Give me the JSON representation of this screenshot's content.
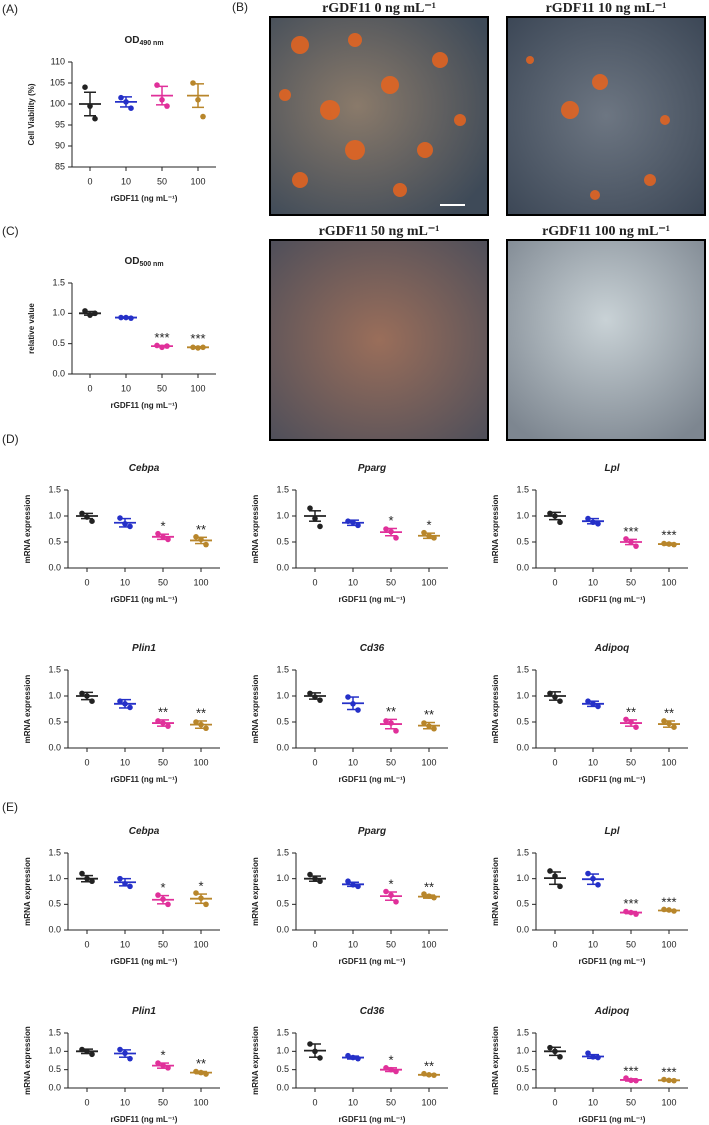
{
  "panel_labels": [
    "(A)",
    "(B)",
    "(C)",
    "(D)",
    "(E)"
  ],
  "images": [
    {
      "title": "rGDF11  0 ng mL⁻¹"
    },
    {
      "title": "rGDF11  10 ng mL⁻¹"
    },
    {
      "title": "rGDF11  50 ng mL⁻¹"
    },
    {
      "title": "rGDF11  100 ng mL⁻¹"
    }
  ],
  "chart_data": [
    {
      "type": "dotplot",
      "title": "OD",
      "title_sub": "490 nm",
      "ylabel": "Cell Viability (%)",
      "xlabel": "rGDF11 (ng mL⁻¹)",
      "categories": [
        "0",
        "10",
        "50",
        "100"
      ],
      "colors": [
        "#222222",
        "#2530c8",
        "#e0309a",
        "#b8862b"
      ],
      "points": [
        [
          104,
          99.5,
          96.5
        ],
        [
          101.5,
          100.5,
          99
        ],
        [
          104.5,
          101,
          99.5
        ],
        [
          105,
          101,
          97
        ]
      ],
      "means": [
        100,
        100.5,
        102,
        102
      ],
      "errors": [
        2.8,
        1.2,
        2.2,
        2.8
      ],
      "annotations": [
        null,
        null,
        null,
        null
      ],
      "ylim": [
        85,
        110
      ],
      "yticks": [
        85,
        90,
        95,
        100,
        105,
        110
      ]
    },
    {
      "type": "dotplot",
      "title": "OD",
      "title_sub": "500 nm",
      "ylabel": "relative value",
      "xlabel": "rGDF11 (ng mL⁻¹)",
      "categories": [
        "0",
        "10",
        "50",
        "100"
      ],
      "colors": [
        "#222222",
        "#2530c8",
        "#e0309a",
        "#b8862b"
      ],
      "points": [
        [
          1.04,
          0.97,
          1.0
        ],
        [
          0.93,
          0.93,
          0.92
        ],
        [
          0.47,
          0.44,
          0.46
        ],
        [
          0.44,
          0.43,
          0.44
        ]
      ],
      "means": [
        1.0,
        0.93,
        0.46,
        0.44
      ],
      "errors": [
        0.03,
        0.01,
        0.01,
        0.01
      ],
      "annotations": [
        null,
        null,
        "***",
        "***"
      ],
      "ylim": [
        0,
        1.5
      ],
      "yticks": [
        {
          "value": 0,
          "label": "0.0"
        },
        0.5,
        {
          "value": 1,
          "label": "1.0"
        },
        1.5
      ]
    },
    {
      "type": "dotplot",
      "title": "Cebpa",
      "ylabel": "mRNA expression",
      "xlabel": "rGDF11 (ng mL⁻¹)",
      "categories": [
        "0",
        "10",
        "50",
        "100"
      ],
      "colors": [
        "#222222",
        "#2530c8",
        "#e0309a",
        "#b8862b"
      ],
      "points": [
        [
          1.05,
          0.98,
          0.9
        ],
        [
          0.96,
          0.85,
          0.8
        ],
        [
          0.66,
          0.6,
          0.55
        ],
        [
          0.6,
          0.55,
          0.45
        ]
      ],
      "means": [
        1.0,
        0.87,
        0.6,
        0.53
      ],
      "errors": [
        0.05,
        0.08,
        0.05,
        0.06
      ],
      "annotations": [
        null,
        null,
        "*",
        "**"
      ],
      "ylim": [
        0,
        1.5
      ],
      "yticks": [
        {
          "value": 0,
          "label": "0.0"
        },
        0.5,
        {
          "value": 1,
          "label": "1.0"
        },
        1.5
      ]
    },
    {
      "type": "dotplot",
      "title": "Pparg",
      "ylabel": "mRNA expression",
      "xlabel": "rGDF11 (ng mL⁻¹)",
      "categories": [
        "0",
        "10",
        "50",
        "100"
      ],
      "colors": [
        "#222222",
        "#2530c8",
        "#e0309a",
        "#b8862b"
      ],
      "points": [
        [
          1.15,
          0.95,
          0.8
        ],
        [
          0.9,
          0.88,
          0.82
        ],
        [
          0.75,
          0.7,
          0.58
        ],
        [
          0.68,
          0.62,
          0.58
        ]
      ],
      "means": [
        1.0,
        0.87,
        0.69,
        0.62
      ],
      "errors": [
        0.1,
        0.05,
        0.07,
        0.05
      ],
      "annotations": [
        null,
        null,
        "*",
        "*"
      ],
      "ylim": [
        0,
        1.5
      ],
      "yticks": [
        {
          "value": 0,
          "label": "0.0"
        },
        0.5,
        {
          "value": 1,
          "label": "1.0"
        },
        1.5
      ]
    },
    {
      "type": "dotplot",
      "title": "Lpl",
      "ylabel": "mRNA expression",
      "xlabel": "rGDF11 (ng mL⁻¹)",
      "categories": [
        "0",
        "10",
        "50",
        "100"
      ],
      "colors": [
        "#222222",
        "#2530c8",
        "#e0309a",
        "#b8862b"
      ],
      "points": [
        [
          1.05,
          1.0,
          0.88
        ],
        [
          0.95,
          0.88,
          0.85
        ],
        [
          0.56,
          0.5,
          0.42
        ],
        [
          0.47,
          0.46,
          0.45
        ]
      ],
      "means": [
        1.0,
        0.9,
        0.5,
        0.46
      ],
      "errors": [
        0.07,
        0.05,
        0.05,
        0.02
      ],
      "annotations": [
        null,
        null,
        "***",
        "***"
      ],
      "ylim": [
        0,
        1.5
      ],
      "yticks": [
        {
          "value": 0,
          "label": "0.0"
        },
        0.5,
        {
          "value": 1,
          "label": "1.0"
        },
        1.5
      ]
    },
    {
      "type": "dotplot",
      "title": "Plin1",
      "ylabel": "mRNA expression",
      "xlabel": "rGDF11 (ng mL⁻¹)",
      "categories": [
        "0",
        "10",
        "50",
        "100"
      ],
      "colors": [
        "#222222",
        "#2530c8",
        "#e0309a",
        "#b8862b"
      ],
      "points": [
        [
          1.05,
          1.0,
          0.9
        ],
        [
          0.9,
          0.85,
          0.78
        ],
        [
          0.52,
          0.48,
          0.42
        ],
        [
          0.5,
          0.45,
          0.38
        ]
      ],
      "means": [
        1.0,
        0.85,
        0.48,
        0.45
      ],
      "errors": [
        0.07,
        0.08,
        0.06,
        0.07
      ],
      "annotations": [
        null,
        null,
        "**",
        "**"
      ],
      "ylim": [
        0,
        1.5
      ],
      "yticks": [
        {
          "value": 0,
          "label": "0.0"
        },
        0.5,
        {
          "value": 1,
          "label": "1.0"
        },
        1.5
      ]
    },
    {
      "type": "dotplot",
      "title": "Cd36",
      "ylabel": "mRNA expression",
      "xlabel": "rGDF11 (ng mL⁻¹)",
      "categories": [
        "0",
        "10",
        "50",
        "100"
      ],
      "colors": [
        "#222222",
        "#2530c8",
        "#e0309a",
        "#b8862b"
      ],
      "points": [
        [
          1.05,
          0.98,
          0.92
        ],
        [
          0.98,
          0.85,
          0.73
        ],
        [
          0.52,
          0.48,
          0.33
        ],
        [
          0.48,
          0.42,
          0.37
        ]
      ],
      "means": [
        1.0,
        0.86,
        0.46,
        0.43
      ],
      "errors": [
        0.06,
        0.12,
        0.09,
        0.06
      ],
      "annotations": [
        null,
        null,
        "**",
        "**"
      ],
      "ylim": [
        0,
        1.5
      ],
      "yticks": [
        {
          "value": 0,
          "label": "0.0"
        },
        0.5,
        {
          "value": 1,
          "label": "1.0"
        },
        1.5
      ]
    },
    {
      "type": "dotplot",
      "title": "Adipoq",
      "ylabel": "mRNA expression",
      "xlabel": "rGDF11 (ng mL⁻¹)",
      "categories": [
        "0",
        "10",
        "50",
        "100"
      ],
      "colors": [
        "#222222",
        "#2530c8",
        "#e0309a",
        "#b8862b"
      ],
      "points": [
        [
          1.05,
          0.98,
          0.9
        ],
        [
          0.9,
          0.85,
          0.8
        ],
        [
          0.55,
          0.5,
          0.4
        ],
        [
          0.52,
          0.47,
          0.4
        ]
      ],
      "means": [
        1.0,
        0.85,
        0.48,
        0.46
      ],
      "errors": [
        0.08,
        0.05,
        0.06,
        0.06
      ],
      "annotations": [
        null,
        null,
        "**",
        "**"
      ],
      "ylim": [
        0,
        1.5
      ],
      "yticks": [
        {
          "value": 0,
          "label": "0.0"
        },
        0.5,
        {
          "value": 1,
          "label": "1.0"
        },
        1.5
      ]
    },
    {
      "type": "dotplot",
      "title": "Cebpa",
      "ylabel": "mRNA expression",
      "xlabel": "rGDF11 (ng mL⁻¹)",
      "categories": [
        "0",
        "10",
        "50",
        "100"
      ],
      "colors": [
        "#222222",
        "#2530c8",
        "#e0309a",
        "#b8862b"
      ],
      "points": [
        [
          1.1,
          1.0,
          0.95
        ],
        [
          1.0,
          0.9,
          0.85
        ],
        [
          0.68,
          0.6,
          0.5
        ],
        [
          0.72,
          0.62,
          0.5
        ]
      ],
      "means": [
        1.0,
        0.93,
        0.59,
        0.61
      ],
      "errors": [
        0.06,
        0.07,
        0.08,
        0.09
      ],
      "annotations": [
        null,
        null,
        "*",
        "*"
      ],
      "ylim": [
        0,
        1.5
      ],
      "yticks": [
        {
          "value": 0,
          "label": "0.0"
        },
        0.5,
        {
          "value": 1,
          "label": "1.0"
        },
        1.5
      ]
    },
    {
      "type": "dotplot",
      "title": "Pparg",
      "ylabel": "mRNA expression",
      "xlabel": "rGDF11 (ng mL⁻¹)",
      "categories": [
        "0",
        "10",
        "50",
        "100"
      ],
      "colors": [
        "#222222",
        "#2530c8",
        "#e0309a",
        "#b8862b"
      ],
      "points": [
        [
          1.08,
          1.0,
          0.95
        ],
        [
          0.95,
          0.88,
          0.85
        ],
        [
          0.75,
          0.68,
          0.55
        ],
        [
          0.7,
          0.66,
          0.63
        ]
      ],
      "means": [
        1.0,
        0.89,
        0.66,
        0.65
      ],
      "errors": [
        0.05,
        0.04,
        0.08,
        0.03
      ],
      "annotations": [
        null,
        null,
        "*",
        "**"
      ],
      "ylim": [
        0,
        1.5
      ],
      "yticks": [
        {
          "value": 0,
          "label": "0.0"
        },
        0.5,
        {
          "value": 1,
          "label": "1.0"
        },
        1.5
      ]
    },
    {
      "type": "dotplot",
      "title": "Lpl",
      "ylabel": "mRNA expression",
      "xlabel": "rGDF11 (ng mL⁻¹)",
      "categories": [
        "0",
        "10",
        "50",
        "100"
      ],
      "colors": [
        "#222222",
        "#2530c8",
        "#e0309a",
        "#b8862b"
      ],
      "points": [
        [
          1.15,
          1.05,
          0.85
        ],
        [
          1.1,
          1.0,
          0.88
        ],
        [
          0.36,
          0.34,
          0.31
        ],
        [
          0.4,
          0.39,
          0.37
        ]
      ],
      "means": [
        1.01,
        0.99,
        0.34,
        0.38
      ],
      "errors": [
        0.12,
        0.1,
        0.02,
        0.01
      ],
      "annotations": [
        null,
        null,
        "***",
        "***"
      ],
      "ylim": [
        0,
        1.5
      ],
      "yticks": [
        {
          "value": 0,
          "label": "0.0"
        },
        0.5,
        {
          "value": 1,
          "label": "1.0"
        },
        1.5
      ]
    },
    {
      "type": "dotplot",
      "title": "Plin1",
      "ylabel": "mRNA expression",
      "xlabel": "rGDF11 (ng mL⁻¹)",
      "categories": [
        "0",
        "10",
        "50",
        "100"
      ],
      "colors": [
        "#222222",
        "#2530c8",
        "#e0309a",
        "#b8862b"
      ],
      "points": [
        [
          1.05,
          1.0,
          0.92
        ],
        [
          1.05,
          0.95,
          0.8
        ],
        [
          0.68,
          0.62,
          0.55
        ],
        [
          0.45,
          0.42,
          0.38
        ]
      ],
      "means": [
        1.0,
        0.94,
        0.61,
        0.42
      ],
      "errors": [
        0.06,
        0.1,
        0.07,
        0.03
      ],
      "annotations": [
        null,
        null,
        "*",
        "**"
      ],
      "ylim": [
        0,
        1.5
      ],
      "yticks": [
        {
          "value": 0,
          "label": "0.0"
        },
        0.5,
        {
          "value": 1,
          "label": "1.0"
        },
        1.5
      ]
    },
    {
      "type": "dotplot",
      "title": "Cd36",
      "ylabel": "mRNA expression",
      "xlabel": "rGDF11 (ng mL⁻¹)",
      "categories": [
        "0",
        "10",
        "50",
        "100"
      ],
      "colors": [
        "#222222",
        "#2530c8",
        "#e0309a",
        "#b8862b"
      ],
      "points": [
        [
          1.2,
          1.0,
          0.82
        ],
        [
          0.88,
          0.83,
          0.8
        ],
        [
          0.55,
          0.5,
          0.45
        ],
        [
          0.39,
          0.36,
          0.35
        ]
      ],
      "means": [
        1.02,
        0.83,
        0.5,
        0.36
      ],
      "errors": [
        0.18,
        0.04,
        0.05,
        0.02
      ],
      "annotations": [
        null,
        null,
        "*",
        "**"
      ],
      "ylim": [
        0,
        1.5
      ],
      "yticks": [
        {
          "value": 0,
          "label": "0.0"
        },
        0.5,
        {
          "value": 1,
          "label": "1.0"
        },
        1.5
      ]
    },
    {
      "type": "dotplot",
      "title": "Adipoq",
      "ylabel": "mRNA expression",
      "xlabel": "rGDF11 (ng mL⁻¹)",
      "categories": [
        "0",
        "10",
        "50",
        "100"
      ],
      "colors": [
        "#222222",
        "#2530c8",
        "#e0309a",
        "#b8862b"
      ],
      "points": [
        [
          1.1,
          1.0,
          0.85
        ],
        [
          0.95,
          0.85,
          0.83
        ],
        [
          0.27,
          0.21,
          0.2
        ],
        [
          0.23,
          0.21,
          0.2
        ]
      ],
      "means": [
        1.0,
        0.86,
        0.22,
        0.21
      ],
      "errors": [
        0.11,
        0.05,
        0.03,
        0.01
      ],
      "annotations": [
        null,
        null,
        "***",
        "***"
      ],
      "ylim": [
        0,
        1.5
      ],
      "yticks": [
        {
          "value": 0,
          "label": "0.0"
        },
        0.5,
        {
          "value": 1,
          "label": "1.0"
        },
        1.5
      ]
    }
  ]
}
